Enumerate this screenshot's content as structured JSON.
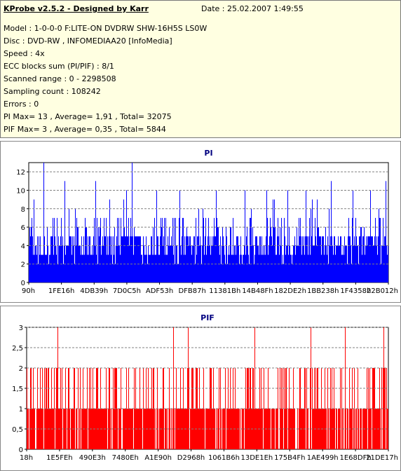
{
  "header": {
    "title": "KProbe v2.5.2 - Designed by Karr",
    "date": "Date : 25.02.2007 1:49:55",
    "lines": [
      "Model : 1-0-0-0 F:LITE-ON DVDRW SHW-16H5S  LS0W",
      "Disc : DVD-RW , INFOMEDIAA20 [InfoMedia]",
      "Speed : 4x",
      "ECC blocks sum (PI/PIF) : 8/1",
      "Scanned range : 0 - 2298508",
      "Sampling count : 108242",
      "Errors : 0",
      "PI Max= 13 , Average= 1,91 , Total= 32075",
      "PIF Max= 3 , Average= 0,35 , Total= 5844"
    ]
  },
  "colors": {
    "pi": "#0000ff",
    "pif": "#ff0000",
    "title": "#000080",
    "grid": "#808080"
  },
  "chart_data": [
    {
      "type": "bar",
      "title": "PI",
      "ylim": [
        0,
        13
      ],
      "yticks": [
        "0",
        "2",
        "4",
        "6",
        "8",
        "10",
        "12"
      ],
      "ytick_values": [
        0,
        2,
        4,
        6,
        8,
        10,
        12
      ],
      "xticks": [
        "90h",
        "1FE16h",
        "4DB39h",
        "7D0C5h",
        "ADF53h",
        "DFB87h",
        "11381Bh",
        "14B48Fh",
        "182DE2h",
        "1BB238h",
        "1F4358h",
        "22B012h"
      ],
      "grid": true,
      "max": 13,
      "average": 1.91,
      "spikes": [
        [
          0.04,
          13
        ],
        [
          0.286,
          13
        ],
        [
          0.1,
          11
        ],
        [
          0.186,
          11
        ],
        [
          0.27,
          10
        ],
        [
          0.354,
          10
        ],
        [
          0.42,
          10
        ],
        [
          0.52,
          10
        ],
        [
          0.6,
          10
        ],
        [
          0.66,
          10
        ],
        [
          0.72,
          10
        ],
        [
          0.77,
          10
        ],
        [
          0.84,
          11
        ],
        [
          0.9,
          10
        ],
        [
          0.95,
          10
        ],
        [
          0.993,
          11
        ]
      ]
    },
    {
      "type": "bar",
      "title": "PIF",
      "ylim": [
        0,
        3
      ],
      "yticks": [
        "0",
        "0,5",
        "1",
        "1,5",
        "2",
        "2,5",
        "3"
      ],
      "ytick_values": [
        0,
        0.5,
        1,
        1.5,
        2,
        2.5,
        3
      ],
      "xticks": [
        "18h",
        "1E5FEh",
        "490E3h",
        "7480Eh",
        "A1E90h",
        "D2968h",
        "1061B6h",
        "13DE1Eh",
        "175B4Fh",
        "1AE499h",
        "1E68DFh",
        "21DE17h"
      ],
      "grid": true,
      "max": 3,
      "average": 0.35,
      "spikes": [
        [
          0.085,
          3
        ],
        [
          0.405,
          3
        ],
        [
          0.445,
          3
        ],
        [
          0.63,
          3
        ],
        [
          0.785,
          3
        ],
        [
          0.88,
          3
        ],
        [
          0.987,
          3
        ]
      ]
    }
  ]
}
